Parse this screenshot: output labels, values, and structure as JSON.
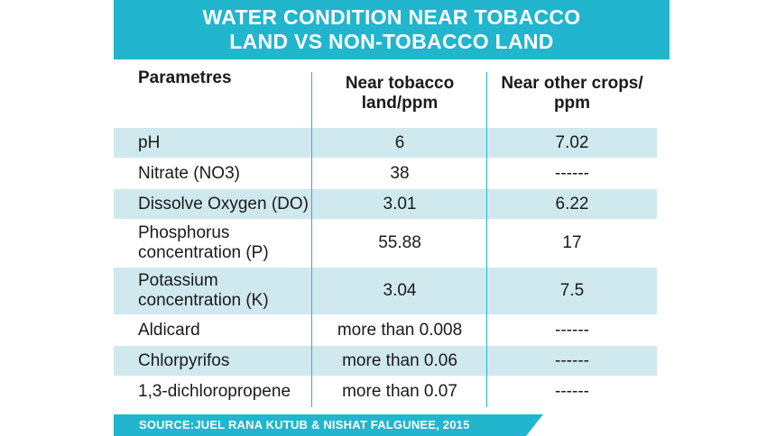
{
  "title": {
    "line1": "WATER CONDITION NEAR TOBACCO",
    "line2": "LAND VS NON-TOBACCO LAND"
  },
  "chart_data": {
    "type": "table",
    "columns": [
      "Parametres",
      "Near tobacco land/ppm",
      "Near other crops/ ppm"
    ],
    "header": {
      "col1": "Parametres",
      "col2_line1": "Near tobacco",
      "col2_line2": "land/ppm",
      "col3_line1": "Near other crops/",
      "col3_line2": "ppm"
    },
    "rows": [
      {
        "lines": [
          "pH"
        ],
        "tobacco": "6",
        "other": "7.02"
      },
      {
        "lines": [
          "Nitrate (NO3)"
        ],
        "tobacco": "38",
        "other": "------"
      },
      {
        "lines": [
          "Dissolve Oxygen (DO)"
        ],
        "tobacco": "3.01",
        "other": "6.22"
      },
      {
        "lines": [
          "Phosphorus",
          "concentration (P)"
        ],
        "tobacco": "55.88",
        "other": "17"
      },
      {
        "lines": [
          "Potassium",
          "concentration (K)"
        ],
        "tobacco": "3.04",
        "other": "7.5"
      },
      {
        "lines": [
          "Aldicard"
        ],
        "tobacco": "more than 0.008",
        "other": "------"
      },
      {
        "lines": [
          "Chlorpyrifos"
        ],
        "tobacco": "more than 0.06",
        "other": "------"
      },
      {
        "lines": [
          "1,3-dichloropropene"
        ],
        "tobacco": "more than 0.07",
        "other": "------"
      }
    ]
  },
  "source": "SOURCE:JUEL RANA KUTUB & NISHAT FALGUNEE, 2015",
  "colors": {
    "accent": "#21b5ce",
    "row_shade": "#cfe9ef",
    "text": "#1a1a1a"
  }
}
